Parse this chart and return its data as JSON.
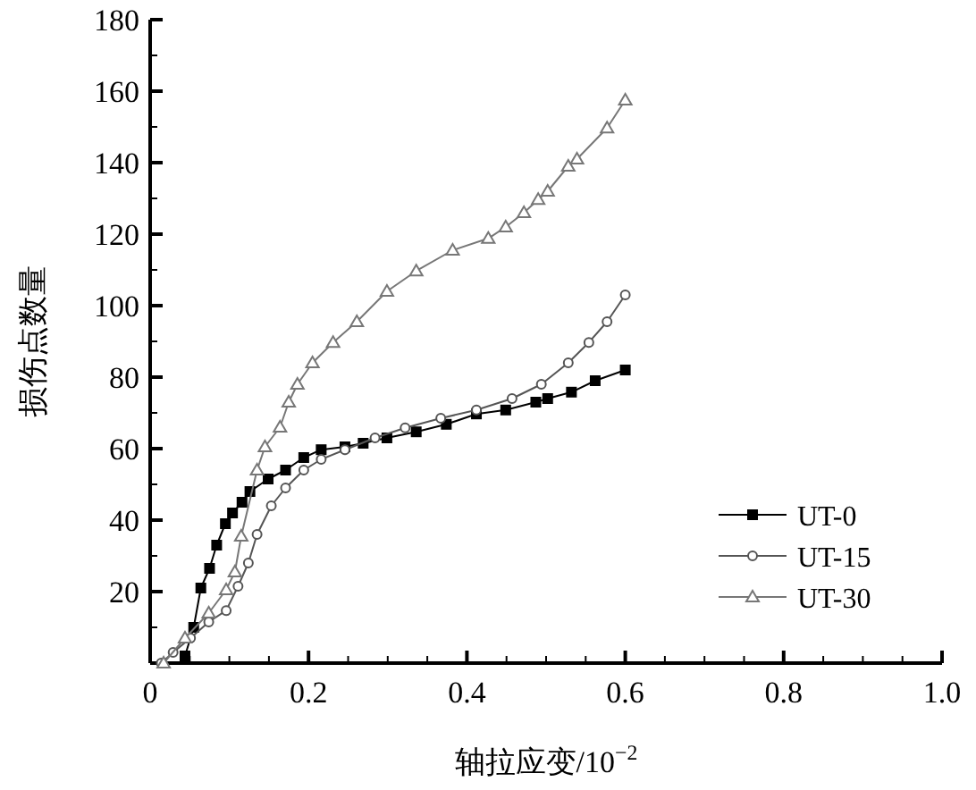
{
  "chart_data": {
    "type": "line",
    "xlabel": "轴拉应变/10$^{−2}$",
    "ylabel": "损伤点数量",
    "xlim": [
      0,
      1
    ],
    "ylim": [
      0,
      180
    ],
    "xticks": [
      0,
      {
        "value": 0.05,
        "label": null
      },
      {
        "value": 0.1,
        "label": null
      },
      {
        "value": 0.15,
        "label": null
      },
      0.2,
      {
        "value": 0.25,
        "label": null
      },
      {
        "value": 0.3,
        "label": null
      },
      {
        "value": 0.35,
        "label": null
      },
      0.4,
      {
        "value": 0.45,
        "label": null
      },
      {
        "value": 0.5,
        "label": null
      },
      {
        "value": 0.55,
        "label": null
      },
      0.6,
      {
        "value": 0.65,
        "label": null
      },
      {
        "value": 0.7,
        "label": null
      },
      {
        "value": 0.75,
        "label": null
      },
      0.8,
      {
        "value": 0.85,
        "label": null
      },
      {
        "value": 0.9,
        "label": null
      },
      {
        "value": 0.95,
        "label": null
      },
      {
        "value": 1,
        "label": "1.0"
      }
    ],
    "yticks": [
      {
        "value": 0,
        "label": null
      },
      {
        "value": 10,
        "label": null
      },
      20,
      {
        "value": 30,
        "label": null
      },
      40,
      {
        "value": 50,
        "label": null
      },
      60,
      {
        "value": 70,
        "label": null
      },
      80,
      {
        "value": 90,
        "label": null
      },
      100,
      {
        "value": 110,
        "label": null
      },
      120,
      {
        "value": 130,
        "label": null
      },
      140,
      {
        "value": 150,
        "label": null
      },
      160,
      {
        "value": 170,
        "label": null
      },
      180
    ],
    "grid": false,
    "legend": "bottom right",
    "line_style": "solid",
    "series": [
      {
        "name": "UT-0",
        "color": "#000000",
        "marker": "square",
        "x": [
          0.044,
          0.055,
          0.064,
          0.075,
          0.084,
          0.095,
          0.104,
          0.116,
          0.126,
          0.149,
          0.171,
          0.194,
          0.216,
          0.246,
          0.269,
          0.299,
          0.336,
          0.374,
          0.412,
          0.449,
          0.487,
          0.502,
          0.532,
          0.562,
          0.6
        ],
        "values": [
          2,
          10,
          21,
          26.5,
          33,
          39,
          42,
          45,
          48,
          51.5,
          54,
          57.5,
          59.7,
          60.5,
          61.5,
          63,
          64.7,
          66.8,
          69.7,
          70.8,
          73,
          74,
          75.8,
          79,
          82
        ]
      },
      {
        "name": "UT-15",
        "color": "#555555",
        "marker": "circle",
        "x": [
          0.014,
          0.029,
          0.051,
          0.074,
          0.096,
          0.111,
          0.124,
          0.135,
          0.153,
          0.171,
          0.194,
          0.216,
          0.246,
          0.284,
          0.322,
          0.367,
          0.412,
          0.457,
          0.494,
          0.528,
          0.554,
          0.577,
          0.6
        ],
        "values": [
          0,
          3,
          7,
          11.5,
          14.7,
          21.5,
          28,
          36,
          44,
          49,
          54,
          57,
          59.7,
          63,
          65.8,
          68.5,
          70.8,
          74,
          78,
          84,
          89.7,
          95.5,
          103
        ]
      },
      {
        "name": "UT-30",
        "color": "#777777",
        "marker": "triangle",
        "x": [
          0.017,
          0.044,
          0.074,
          0.096,
          0.107,
          0.115,
          0.135,
          0.145,
          0.164,
          0.175,
          0.186,
          0.205,
          0.231,
          0.261,
          0.299,
          0.336,
          0.382,
          0.427,
          0.449,
          0.472,
          0.49,
          0.502,
          0.528,
          0.539,
          0.577,
          0.6
        ],
        "values": [
          0,
          7,
          14,
          20.5,
          25.5,
          35.5,
          54,
          60.5,
          66,
          73,
          78,
          84,
          89.7,
          95.5,
          104,
          109.7,
          115.5,
          118.8,
          122,
          126,
          129.7,
          132,
          139,
          141,
          149.7,
          157.5
        ]
      }
    ]
  }
}
